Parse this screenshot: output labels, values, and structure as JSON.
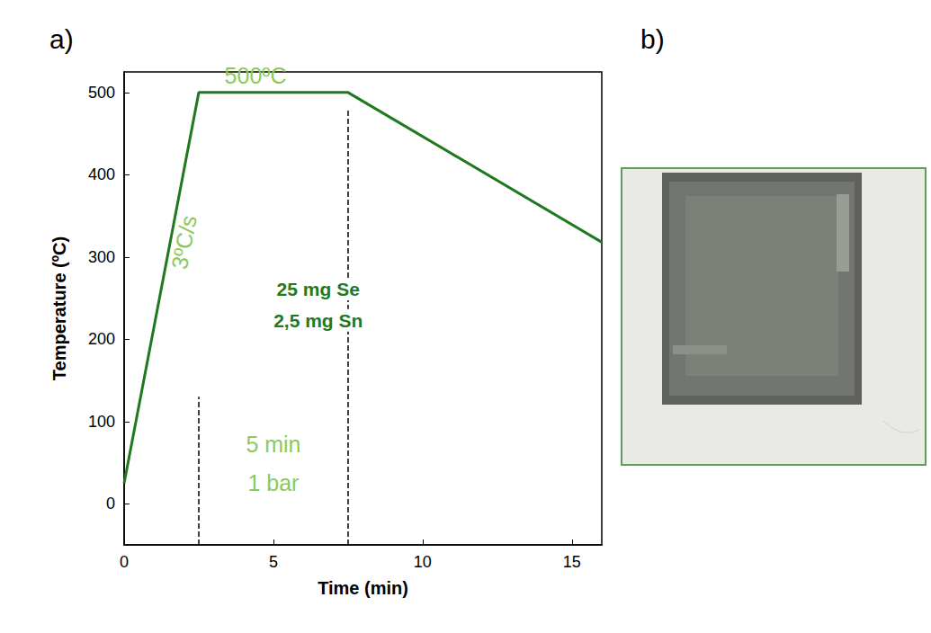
{
  "panel_labels": [
    "a)",
    "b)"
  ],
  "chart_data": {
    "type": "line",
    "x": [
      0,
      2.5,
      7.5,
      16
    ],
    "values": [
      25,
      500,
      500,
      318
    ],
    "color": "#1f7a1f",
    "xlabel": "Time (min)",
    "ylabel": "Temperature (ºC)",
    "xlim": [
      0,
      16
    ],
    "xticks": [
      0,
      5,
      10,
      15
    ],
    "ylim": [
      -50,
      525
    ],
    "yticks": [
      0,
      100,
      200,
      300,
      400,
      500
    ],
    "grid": false,
    "annotations": [
      {
        "text": "500ºC",
        "x": 4.4,
        "y": 521,
        "color": "#8cc95a"
      },
      {
        "text": "3ºC/s",
        "x": 2.0,
        "y": 318,
        "color": "#8cc95a",
        "orientation": "vertical"
      },
      {
        "text": "25 mg Se",
        "x": 6.5,
        "y": 261,
        "color": "#1f7a1f"
      },
      {
        "text": "2,5 mg Sn",
        "x": 6.5,
        "y": 223,
        "color": "#1f7a1f"
      },
      {
        "text": "5 min",
        "x": 5.0,
        "y": 72,
        "color": "#8cc95a"
      },
      {
        "text": "1 bar",
        "x": 5.0,
        "y": 25,
        "color": "#8cc95a"
      }
    ],
    "dashed_lines": [
      {
        "x": 2.5,
        "y": [
          -50,
          130
        ]
      },
      {
        "x": 7.5,
        "y": [
          -50,
          480
        ]
      }
    ]
  }
}
